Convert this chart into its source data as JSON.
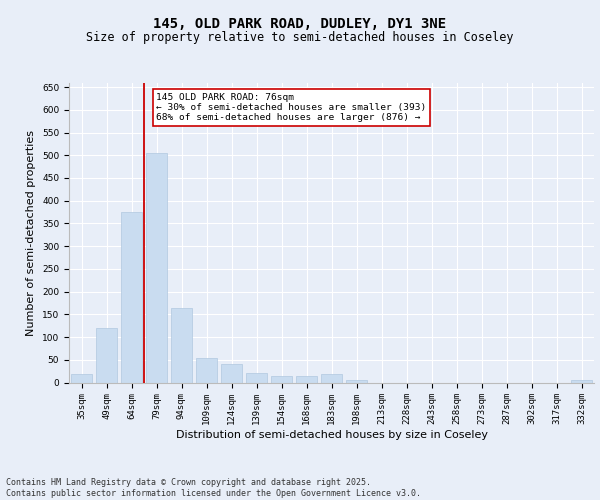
{
  "title1": "145, OLD PARK ROAD, DUDLEY, DY1 3NE",
  "title2": "Size of property relative to semi-detached houses in Coseley",
  "xlabel": "Distribution of semi-detached houses by size in Coseley",
  "ylabel": "Number of semi-detached properties",
  "categories": [
    "35sqm",
    "49sqm",
    "64sqm",
    "79sqm",
    "94sqm",
    "109sqm",
    "124sqm",
    "139sqm",
    "154sqm",
    "168sqm",
    "183sqm",
    "198sqm",
    "213sqm",
    "228sqm",
    "243sqm",
    "258sqm",
    "273sqm",
    "287sqm",
    "302sqm",
    "317sqm",
    "332sqm"
  ],
  "values": [
    18,
    120,
    375,
    505,
    165,
    55,
    40,
    20,
    15,
    15,
    18,
    5,
    0,
    0,
    0,
    0,
    0,
    0,
    0,
    0,
    5
  ],
  "bar_color": "#c9dcf0",
  "bar_edge_color": "#b0c8e0",
  "vline_color": "#cc0000",
  "annotation_text": "145 OLD PARK ROAD: 76sqm\n← 30% of semi-detached houses are smaller (393)\n68% of semi-detached houses are larger (876) →",
  "annotation_box_color": "#ffffff",
  "annotation_box_edge_color": "#cc0000",
  "ylim": [
    0,
    660
  ],
  "yticks": [
    0,
    50,
    100,
    150,
    200,
    250,
    300,
    350,
    400,
    450,
    500,
    550,
    600,
    650
  ],
  "footer_text": "Contains HM Land Registry data © Crown copyright and database right 2025.\nContains public sector information licensed under the Open Government Licence v3.0.",
  "bg_color": "#e8eef8",
  "plot_bg_color": "#e8eef8",
  "grid_color": "#ffffff",
  "title_fontsize": 10,
  "subtitle_fontsize": 8.5,
  "tick_fontsize": 6.5,
  "label_fontsize": 8,
  "footer_fontsize": 6
}
